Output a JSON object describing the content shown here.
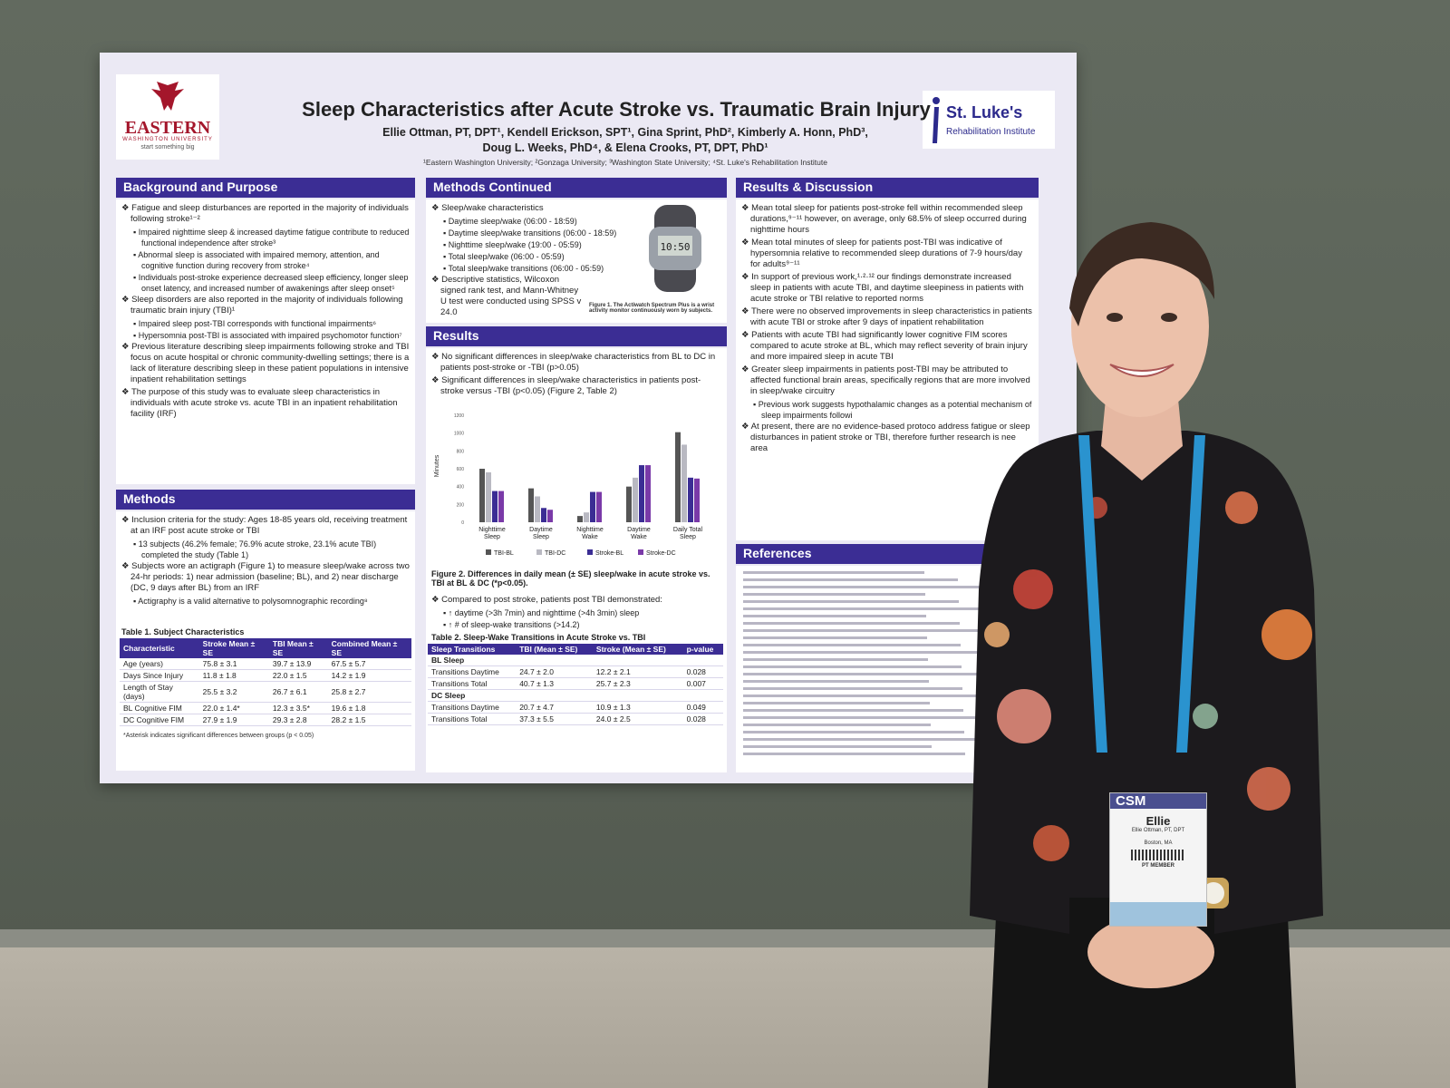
{
  "poster": {
    "title": "Sleep Characteristics after Acute Stroke vs. Traumatic Brain Injury",
    "authors_line1": "Ellie Ottman, PT, DPT¹, Kendell Erickson, SPT¹, Gina Sprint, PhD², Kimberly A. Honn, PhD³,",
    "authors_line2": "Doug L. Weeks, PhD⁴, & Elena Crooks, PT, DPT, PhD¹",
    "affiliations": "¹Eastern Washington University; ²Gonzaga University; ³Washington State University; ⁴St. Luke's Rehabilitation Institute",
    "logo_left": {
      "name": "EASTERN",
      "sub": "WASHINGTON UNIVERSITY",
      "tag": "start something big"
    },
    "logo_right": {
      "name": "St. Luke's",
      "sub": "Rehabilitation Institute"
    },
    "background": {
      "heading": "Background and Purpose",
      "items": [
        "Fatigue and sleep disturbances are reported in the majority of individuals following stroke¹⁻²",
        "Impaired nighttime sleep & increased daytime fatigue contribute to reduced functional independence after stroke³",
        "Abnormal sleep is associated with impaired memory, attention, and cognitive function during recovery from stroke⁴",
        "Individuals post-stroke experience decreased sleep efficiency, longer sleep onset latency, and increased number of awakenings after sleep onset⁵",
        "Sleep disorders are also reported in the majority of individuals following traumatic brain injury (TBI)¹",
        "Impaired sleep post-TBI corresponds with functional impairments⁶",
        "Hypersomnia post-TBI is associated with impaired psychomotor function⁷",
        "Previous literature describing sleep impairments following stroke and TBI focus on acute hospital or chronic community-dwelling settings; there is a lack of literature describing sleep in these patient populations in intensive inpatient rehabilitation settings",
        "The purpose of this study was to evaluate sleep characteristics in individuals with acute stroke vs. acute TBI in an inpatient rehabilitation facility (IRF)"
      ]
    },
    "methods": {
      "heading": "Methods",
      "items": [
        "Inclusion criteria for the study: Ages 18-85 years old, receiving treatment at an IRF post acute stroke or TBI",
        "13 subjects (46.2% female; 76.9% acute stroke, 23.1% acute TBI) completed the study (Table 1)",
        "Subjects wore an actigraph (Figure 1) to measure sleep/wake across two 24-hr periods: 1) near admission (baseline; BL), and 2) near discharge (DC, 9 days after BL) from an IRF",
        "Actigraphy is a valid alternative to polysomnographic recording⁸"
      ],
      "table_title": "Table 1. Subject Characteristics",
      "table_headers": [
        "Characteristic",
        "Stroke Mean ± SE",
        "TBI Mean ± SE",
        "Combined Mean ± SE"
      ],
      "table_rows": [
        [
          "Age (years)",
          "75.8 ± 3.1",
          "39.7 ± 13.9",
          "67.5 ± 5.7"
        ],
        [
          "Days Since Injury",
          "11.8 ± 1.8",
          "22.0 ± 1.5",
          "14.2 ± 1.9"
        ],
        [
          "Length of Stay (days)",
          "25.5 ± 3.2",
          "26.7 ± 6.1",
          "25.8 ± 2.7"
        ],
        [
          "BL Cognitive FIM",
          "22.0 ± 1.4*",
          "12.3 ± 3.5*",
          "19.6 ± 1.8"
        ],
        [
          "DC Cognitive FIM",
          "27.9 ± 1.9",
          "29.3 ± 2.8",
          "28.2 ± 1.5"
        ]
      ],
      "table_note": "*Asterisk indicates significant differences between groups (p < 0.05)"
    },
    "methods_cont": {
      "heading": "Methods Continued",
      "items": [
        "Sleep/wake characteristics",
        "Daytime sleep/wake (06:00 - 18:59)",
        "Daytime sleep/wake transitions (06:00 - 18:59)",
        "Nighttime sleep/wake (19:00 - 05:59)",
        "Total sleep/wake (06:00 - 05:59)",
        "Total sleep/wake transitions (06:00 - 05:59)",
        "Descriptive statistics, Wilcoxon signed rank test, and Mann-Whitney U test were conducted using SPSS v 24.0"
      ],
      "watch_readout": "10:50",
      "fig1_caption": "Figure 1. The Actiwatch Spectrum Plus is a wrist activity monitor continuously worn by subjects."
    },
    "results": {
      "heading": "Results",
      "items": [
        "No significant differences in sleep/wake characteristics from BL to DC in patients post-stroke or -TBI (p>0.05)",
        "Significant differences in sleep/wake characteristics in patients post-stroke versus -TBI (p<0.05) (Figure 2, Table 2)"
      ],
      "fig2_caption": "Figure 2. Differences in daily mean (± SE) sleep/wake in acute stroke vs. TBI at BL & DC (*p<0.05).",
      "compare_lead": "Compared to post stroke, patients post TBI demonstrated:",
      "compare_items": [
        "↑ daytime (>3h 7min) and nighttime (>4h 3min) sleep",
        "↑ # of sleep-wake transitions (>14.2)"
      ],
      "table2_title": "Table 2. Sleep-Wake Transitions in Acute Stroke vs. TBI",
      "table2_headers": [
        "Sleep Transitions",
        "TBI (Mean ± SE)",
        "Stroke (Mean ± SE)",
        "p-value"
      ],
      "table2_groups": [
        {
          "label": "BL Sleep",
          "rows": [
            [
              "Transitions Daytime",
              "24.7 ± 2.0",
              "12.2 ± 2.1",
              "0.028"
            ],
            [
              "Transitions Total",
              "40.7 ± 1.3",
              "25.7 ± 2.3",
              "0.007"
            ]
          ]
        },
        {
          "label": "DC Sleep",
          "rows": [
            [
              "Transitions Daytime",
              "20.7 ± 4.7",
              "10.9 ± 1.3",
              "0.049"
            ],
            [
              "Transitions Total",
              "37.3 ± 5.5",
              "24.0 ± 2.5",
              "0.028"
            ]
          ]
        }
      ]
    },
    "discussion": {
      "heading": "Results & Discussion",
      "items": [
        "Mean total sleep for patients post-stroke fell within recommended sleep durations,⁹⁻¹¹ however, on average, only 68.5% of sleep occurred during nighttime hours",
        "Mean total minutes of sleep for patients post-TBI was indicative of hypersomnia relative to recommended sleep durations of 7-9 hours/day for adults⁹⁻¹¹",
        "In support of previous work,¹·²·¹² our findings demonstrate increased sleep in patients with acute TBI, and daytime sleepiness in patients with acute stroke or TBI relative to reported norms",
        "There were no observed improvements in sleep characteristics in patients with acute TBI or stroke after 9 days of inpatient rehabilitation",
        "Patients with acute TBI had significantly lower cognitive FIM scores compared to acute stroke at BL, which may reflect severity of brain injury and more impaired sleep in acute TBI",
        "Greater sleep impairments in patients post-TBI may be attributed to affected functional brain areas, specifically regions that are more involved in sleep/wake circuitry",
        "Previous work suggests hypothalamic changes as a potential mechanism of sleep impairments followi",
        "At present, there are no evidence-based protoco address fatigue or sleep disturbances in patient stroke or TBI, therefore further research is nee area"
      ]
    },
    "references": {
      "heading": "References"
    }
  },
  "badge": {
    "event": "CSM",
    "name": "Ellie",
    "sub": "Ellie Ottman, PT, DPT",
    "city": "Boston, MA",
    "member": "PT MEMBER"
  },
  "chart_data": {
    "type": "bar",
    "ylabel": "Minutes",
    "yticks": [
      "1200",
      "1000",
      "800",
      "600",
      "400",
      "200",
      "0"
    ],
    "ylim": [
      0,
      1200
    ],
    "categories": [
      "Nighttime Sleep",
      "Daytime Sleep",
      "Nighttime Wake",
      "Daytime Wake",
      "Daily Total Sleep"
    ],
    "series": [
      {
        "name": "TBI-BL",
        "color": "#555555",
        "values": [
          600,
          380,
          70,
          400,
          1010
        ]
      },
      {
        "name": "TBI-DC",
        "color": "#b9b9c2",
        "values": [
          560,
          290,
          110,
          500,
          870
        ]
      },
      {
        "name": "Stroke-BL",
        "color": "#3b2d94",
        "values": [
          350,
          160,
          340,
          640,
          500
        ]
      },
      {
        "name": "Stroke-DC",
        "color": "#7a3aa8",
        "values": [
          350,
          140,
          340,
          640,
          490
        ]
      }
    ],
    "legend": "bottom"
  }
}
